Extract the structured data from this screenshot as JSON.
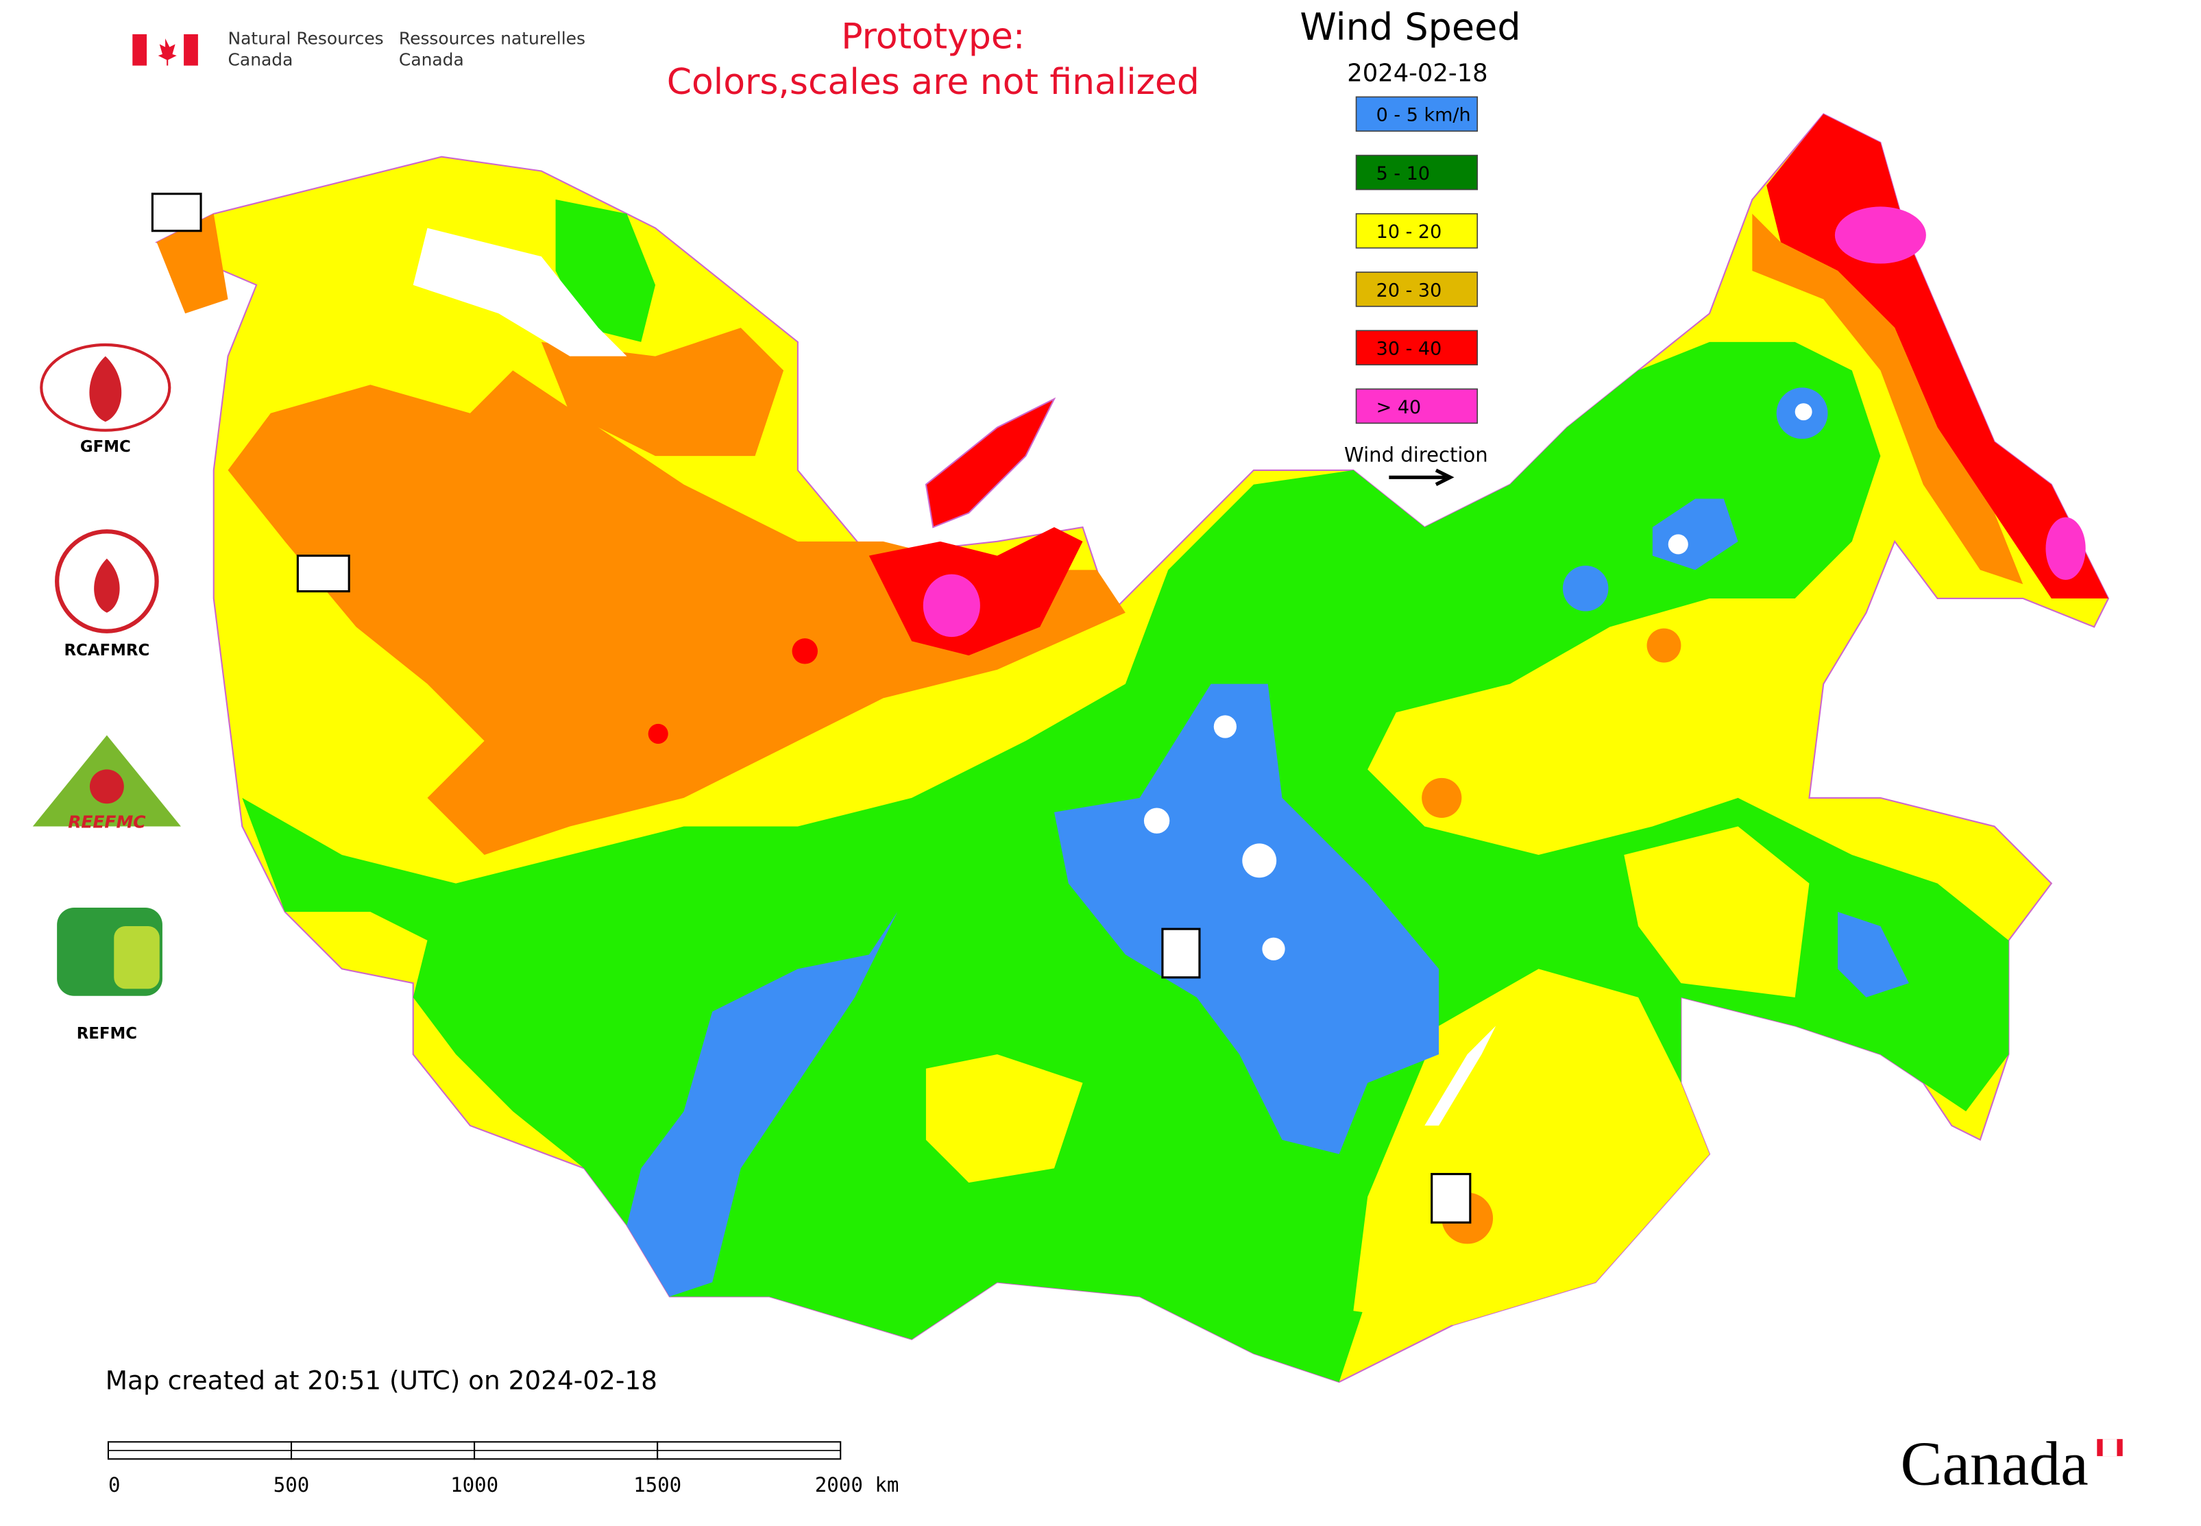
{
  "header": {
    "agency_en": [
      "Natural Resources",
      "Canada"
    ],
    "agency_fr": [
      "Ressources naturelles",
      "Canada"
    ]
  },
  "notice": [
    "Prototype:",
    "Colors,scales are not finalized"
  ],
  "legend": {
    "title": "Wind Speed",
    "date": "2024-02-18",
    "items": [
      {
        "label": "0 - 5 km/h",
        "color": "#3d8ef5"
      },
      {
        "label": "5 - 10",
        "color": "#008000"
      },
      {
        "label": "10 - 20",
        "color": "#ffff00"
      },
      {
        "label": "20 - 30",
        "color": "#e0b800"
      },
      {
        "label": "30 - 40",
        "color": "#ff0000"
      },
      {
        "label": "> 40",
        "color": "#ff33cc"
      }
    ],
    "direction_label": "Wind direction"
  },
  "logos": [
    {
      "label": "GFMC"
    },
    {
      "label": "RCAFMRC"
    },
    {
      "emblem_text": "REEFMC"
    },
    {
      "label": "REFMC"
    }
  ],
  "footer": {
    "created": "Map created at 20:51 (UTC) on 2024-02-18",
    "scale_labels": [
      "0",
      "500",
      "1000",
      "1500",
      "2000 km"
    ],
    "wordmark": "Canada"
  }
}
